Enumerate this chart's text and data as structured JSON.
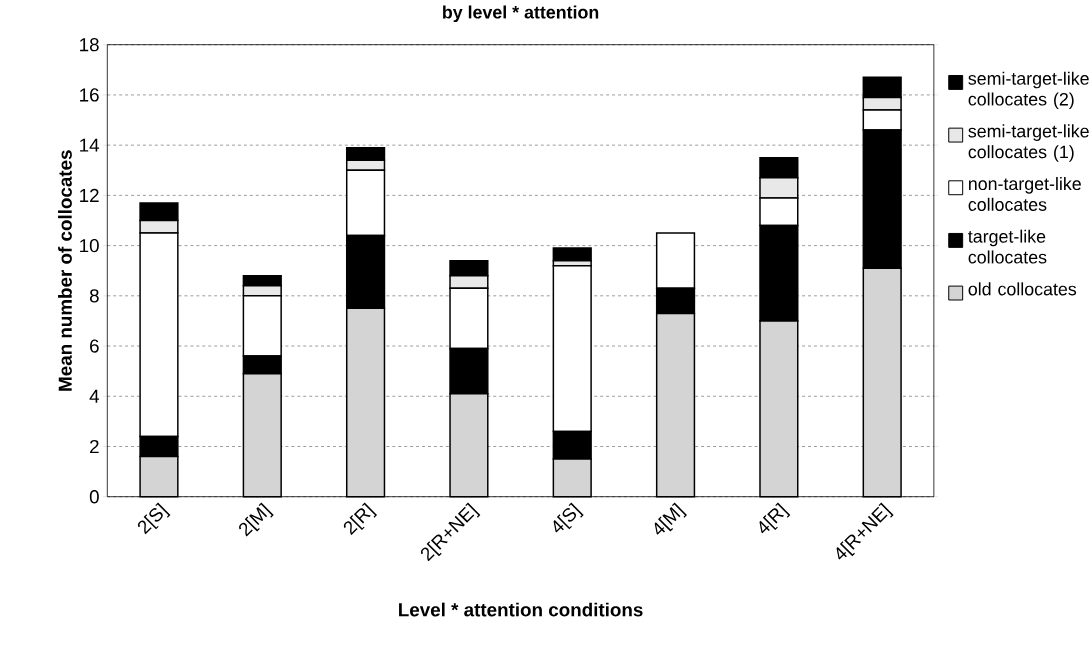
{
  "chart_data": {
    "type": "bar",
    "stacked": true,
    "title": "by level * attention",
    "xlabel": "Level *  attention conditions",
    "ylabel": "Mean number of collocates",
    "categories": [
      "2[S]",
      "2[M]",
      "2[R]",
      "2[R+NE]",
      "4[S]",
      "4[M]",
      "4[R]",
      "4[R+NE]"
    ],
    "series": [
      {
        "name": "old collocates",
        "color": "#d4d4d4",
        "values": [
          1.6,
          4.9,
          7.5,
          4.1,
          1.5,
          7.3,
          7.0,
          9.1
        ]
      },
      {
        "name": "target-like collocates",
        "color": "#000000",
        "values": [
          0.8,
          0.7,
          2.9,
          1.8,
          1.1,
          1.0,
          3.8,
          5.5
        ]
      },
      {
        "name": "non-target-like collocates",
        "color": "#ffffff",
        "values": [
          8.1,
          2.4,
          2.6,
          2.4,
          6.6,
          2.2,
          1.1,
          0.8
        ]
      },
      {
        "name": "semi-target-like collocates (1)",
        "color": "#e8e8e8",
        "values": [
          0.5,
          0.4,
          0.4,
          0.5,
          0.2,
          0,
          0.8,
          0.5
        ]
      },
      {
        "name": "semi-target-like collocates (2)",
        "color": "#000000",
        "values": [
          0.7,
          0.4,
          0.5,
          0.6,
          0.5,
          0,
          0.8,
          0.8
        ]
      }
    ],
    "ylim": [
      0,
      18
    ],
    "yticks": [
      0,
      2,
      4,
      6,
      8,
      10,
      12,
      14,
      16,
      18
    ],
    "grid": "y",
    "legend": "right"
  }
}
